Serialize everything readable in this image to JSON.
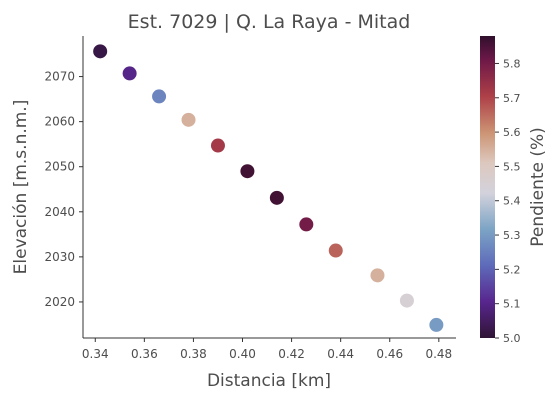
{
  "chart_data": {
    "type": "scatter",
    "title": "Est. 7029 | Q. La Raya - Mitad",
    "xlabel": "Distancia [km]",
    "ylabel": "Elevación [m.s.n.m.]",
    "colorbar_label": "Pendiente (%)",
    "xlim": [
      0.335,
      0.487
    ],
    "ylim": [
      2012,
      2079
    ],
    "xticks": [
      0.34,
      0.36,
      0.38,
      0.4,
      0.42,
      0.44,
      0.46,
      0.48
    ],
    "xtick_labels": [
      "0.34",
      "0.36",
      "0.38",
      "0.40",
      "0.42",
      "0.44",
      "0.46",
      "0.48"
    ],
    "yticks": [
      2020,
      2030,
      2040,
      2050,
      2060,
      2070
    ],
    "ytick_labels": [
      "2020",
      "2030",
      "2040",
      "2050",
      "2060",
      "2070"
    ],
    "colorbar_range": [
      5.0,
      5.88
    ],
    "colorbar_ticks": [
      5.0,
      5.1,
      5.2,
      5.3,
      5.4,
      5.5,
      5.6,
      5.7,
      5.8
    ],
    "colorbar_tick_labels": [
      "5.0",
      "5.1",
      "5.2",
      "5.3",
      "5.4",
      "5.5",
      "5.6",
      "5.7",
      "5.8"
    ],
    "colormap": "twilight_shifted",
    "grid": false,
    "points": [
      {
        "x": 0.342,
        "y": 2075.6,
        "c": 5.02
      },
      {
        "x": 0.354,
        "y": 2070.7,
        "c": 5.1
      },
      {
        "x": 0.366,
        "y": 2065.6,
        "c": 5.26
      },
      {
        "x": 0.378,
        "y": 2060.4,
        "c": 5.55
      },
      {
        "x": 0.39,
        "y": 2054.7,
        "c": 5.72
      },
      {
        "x": 0.402,
        "y": 2049.0,
        "c": 5.86
      },
      {
        "x": 0.414,
        "y": 2043.1,
        "c": 5.86
      },
      {
        "x": 0.426,
        "y": 2037.2,
        "c": 5.8
      },
      {
        "x": 0.438,
        "y": 2031.4,
        "c": 5.66
      },
      {
        "x": 0.455,
        "y": 2025.9,
        "c": 5.55
      },
      {
        "x": 0.467,
        "y": 2020.3,
        "c": 5.45
      },
      {
        "x": 0.479,
        "y": 2014.9,
        "c": 5.3
      }
    ]
  }
}
